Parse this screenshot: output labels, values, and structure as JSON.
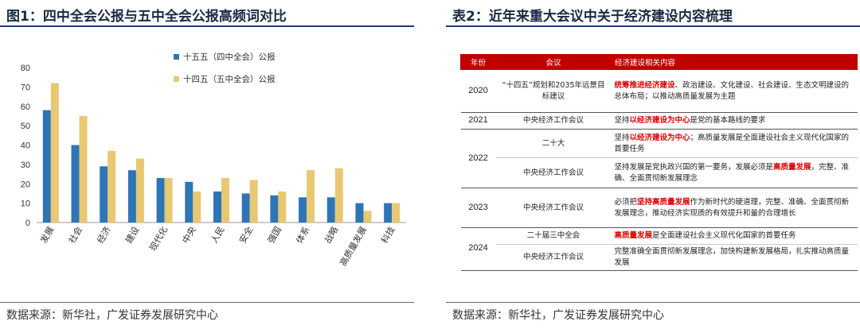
{
  "left_panel": {
    "title": "图1：四中全会公报与五中全会公报高频词对比",
    "source": "数据来源：新华社，广发证券发展研究中心"
  },
  "right_panel": {
    "title": "表2：近年来重大会议中关于经济建设内容梳理",
    "source": "数据来源：新华社，广发证券发展研究中心",
    "table": {
      "headers": [
        "年份",
        "会议",
        "经济建设相关内容"
      ],
      "rows": [
        {
          "year": "2020",
          "meeting": "“十四五”规划和2035年远景目标建议",
          "segments": [
            {
              "text": "统筹推进经济建设",
              "hl": true
            },
            {
              "text": "、政治建设、文化建设、社会建设、生态文明建设的总体布局；以推动高质量发展为主题",
              "hl": false
            }
          ]
        },
        {
          "year": "2021",
          "meeting": "中央经济工作会议",
          "segments": [
            {
              "text": "坚持",
              "hl": false
            },
            {
              "text": "以经济建设为中心",
              "hl": true
            },
            {
              "text": "是党的基本路线的要求",
              "hl": false
            }
          ]
        },
        {
          "year": "2022",
          "meeting": "二十大",
          "segments": [
            {
              "text": "坚持",
              "hl": false
            },
            {
              "text": "以经济建设为中心",
              "hl": true
            },
            {
              "text": "；高质量发展是全面建设社会主义现代化国家的首要任务",
              "hl": false
            }
          ]
        },
        {
          "year": "",
          "meeting": "中央经济工作会议",
          "segments": [
            {
              "text": "坚持发展是党执政兴国的第一要务，发展必须是",
              "hl": false
            },
            {
              "text": "高质量发展",
              "hl": true
            },
            {
              "text": "，完整、准确、全面贯彻新发展理念",
              "hl": false
            }
          ]
        },
        {
          "year": "2023",
          "meeting": "中央经济工作会议",
          "segments": [
            {
              "text": "必须把",
              "hl": false
            },
            {
              "text": "坚持高质量发展",
              "hl": true
            },
            {
              "text": "作为新时代的硬道理，完整、准确、全面贯彻新发展理念，推动经济实现质的有效提升和量的合理增长",
              "hl": false
            }
          ]
        },
        {
          "year": "2024",
          "meeting": "二十届三中全会",
          "segments": [
            {
              "text": "高质量发展",
              "hl": true
            },
            {
              "text": "是全面建设社会主义现代化国家的首要任务",
              "hl": false
            }
          ]
        },
        {
          "year": "",
          "meeting": "中央经济工作会议",
          "segments": [
            {
              "text": "完整准确全面贯彻新发展理念，加快构建新发展格局，扎实推动高质量发展",
              "hl": false
            }
          ]
        }
      ]
    }
  },
  "colors": {
    "series1": "#2e75b6",
    "series2": "#e8c872",
    "header_bg": "#c00000",
    "highlight": "#e00000"
  },
  "chart_data": {
    "type": "bar",
    "title": "图1：四中全会公报与五中全会公报高频词对比",
    "categories": [
      "发展",
      "社会",
      "经济",
      "建设",
      "现代化",
      "中央",
      "人民",
      "安全",
      "强国",
      "体系",
      "战略",
      "高质量发展",
      "科技"
    ],
    "series": [
      {
        "name": "十五五（四中全会）公报",
        "values": [
          58,
          40,
          29,
          27,
          23,
          21,
          16,
          15,
          14,
          13,
          13,
          10,
          10
        ]
      },
      {
        "name": "十四五（五中全会）公报",
        "values": [
          72,
          55,
          37,
          33,
          23,
          16,
          23,
          22,
          16,
          27,
          28,
          6,
          10
        ]
      }
    ],
    "ylim": [
      0,
      80
    ],
    "yticks": [
      0,
      10,
      20,
      30,
      40,
      50,
      60,
      70,
      80
    ],
    "xlabel": "",
    "ylabel": "",
    "legend": "top-right",
    "grid": false
  }
}
